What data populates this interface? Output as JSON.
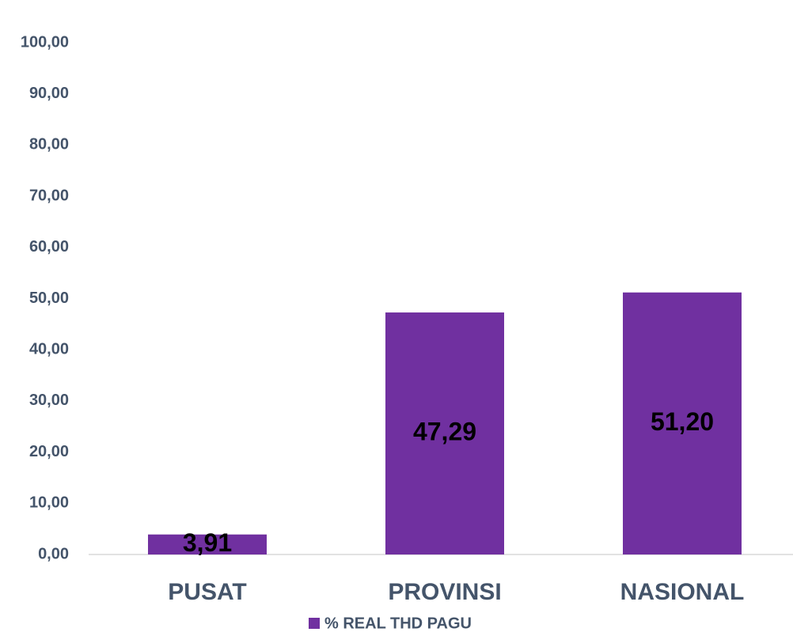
{
  "chart_data": {
    "type": "bar",
    "categories": [
      "PUSAT",
      "PROVINSI",
      "NASIONAL"
    ],
    "series": [
      {
        "name": "% REAL THD PAGU",
        "color": "#7030a0",
        "values": [
          3.91,
          47.29,
          51.2
        ],
        "value_labels": [
          "3,91",
          "47,29",
          "51,20"
        ]
      }
    ],
    "ylim": [
      0,
      100
    ],
    "yticks": [
      {
        "value": 0,
        "label": "0,00"
      },
      {
        "value": 10,
        "label": "10,00"
      },
      {
        "value": 20,
        "label": "20,00"
      },
      {
        "value": 30,
        "label": "30,00"
      },
      {
        "value": 40,
        "label": "40,00"
      },
      {
        "value": 50,
        "label": "50,00"
      },
      {
        "value": 60,
        "label": "60,00"
      },
      {
        "value": 70,
        "label": "70,00"
      },
      {
        "value": 80,
        "label": "80,00"
      },
      {
        "value": 90,
        "label": "90,00"
      },
      {
        "value": 100,
        "label": "100,00"
      }
    ],
    "grid": false,
    "legend": "bottom"
  }
}
